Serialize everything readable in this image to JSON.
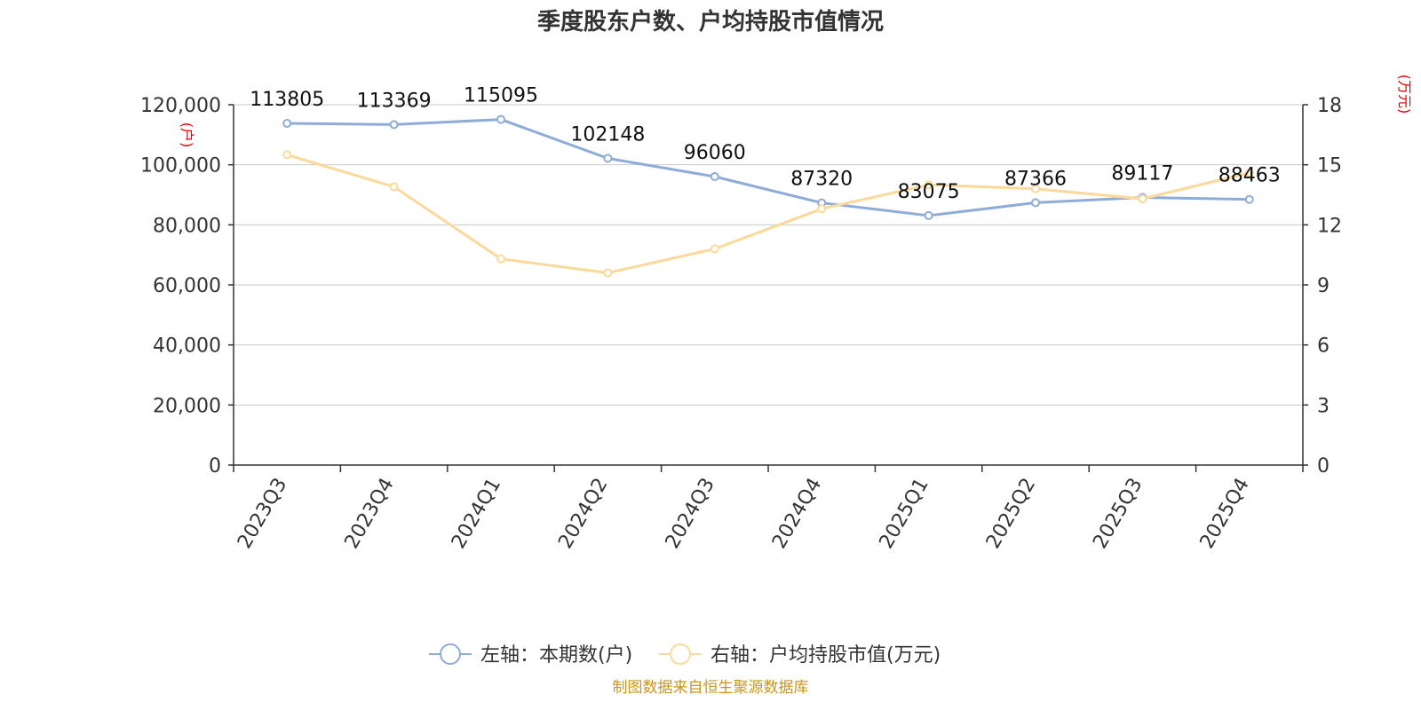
{
  "chart_data": {
    "type": "line",
    "title": "季度股东户数、户均持股市值情况",
    "categories": [
      "2023Q3",
      "2023Q4",
      "2024Q1",
      "2024Q2",
      "2024Q3",
      "2024Q4",
      "2025Q1",
      "2025Q2",
      "2025Q3",
      "2025Q4"
    ],
    "y_left": {
      "unit": "(户)",
      "range": [
        0,
        120000
      ],
      "ticks": [
        "0",
        "20,000",
        "40,000",
        "60,000",
        "80,000",
        "100,000",
        "120,000"
      ],
      "tick_values": [
        0,
        20000,
        40000,
        60000,
        80000,
        100000,
        120000
      ]
    },
    "y_right": {
      "unit": "(万元)",
      "range": [
        0,
        18
      ],
      "ticks": [
        "0",
        "3",
        "6",
        "9",
        "12",
        "15",
        "18"
      ],
      "tick_values": [
        0,
        3,
        6,
        9,
        12,
        15,
        18
      ]
    },
    "series": [
      {
        "name": "左轴：本期数(户)",
        "axis": "left",
        "color": "#8eacd9",
        "values": [
          113805,
          113369,
          115095,
          102148,
          96060,
          87320,
          83075,
          87366,
          89117,
          88463
        ],
        "labels": [
          "113805",
          "113369",
          "115095",
          "102148",
          "96060",
          "87320",
          "83075",
          "87366",
          "89117",
          "88463"
        ]
      },
      {
        "name": "右轴：户均持股市值(万元)",
        "axis": "right",
        "color": "#fbd99a",
        "values": [
          15.5,
          13.9,
          10.3,
          9.6,
          10.8,
          12.8,
          14.0,
          13.8,
          13.3,
          14.6
        ]
      }
    ],
    "grid": true,
    "legend_position": "bottom",
    "source": "制图数据来自恒生聚源数据库"
  }
}
